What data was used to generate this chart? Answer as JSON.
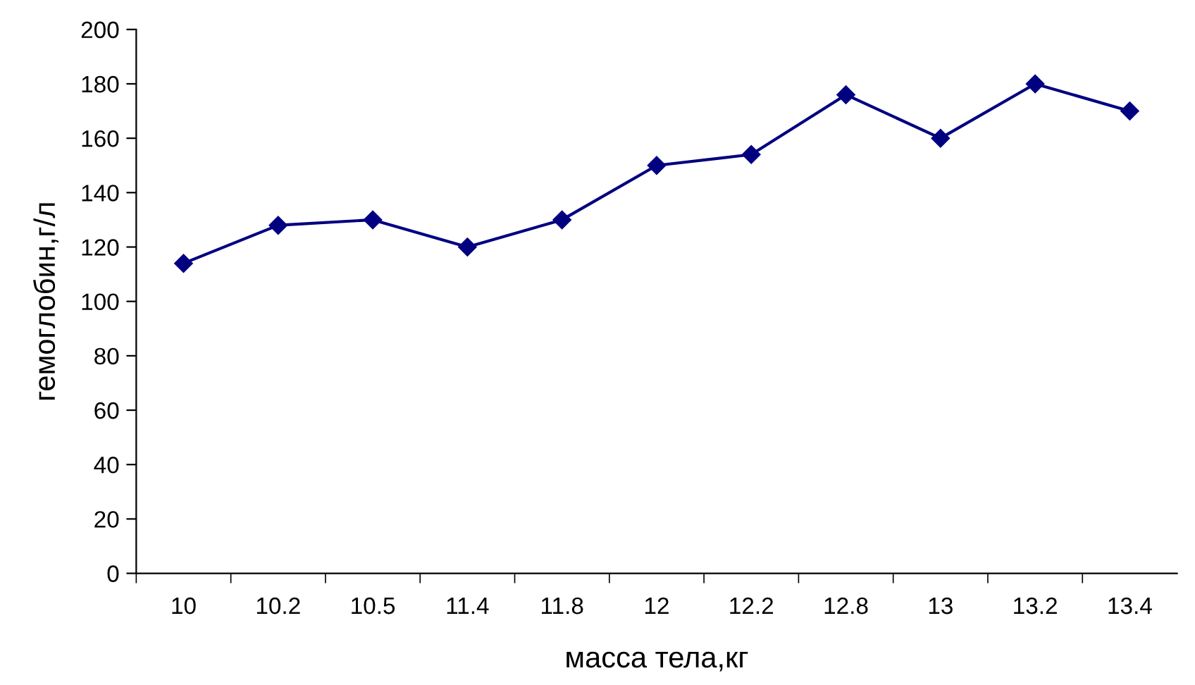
{
  "chart_data": {
    "type": "line",
    "xlabel": "масса тела,кг",
    "ylabel": "гемоглобин,г/л",
    "categories": [
      "10",
      "10.2",
      "10.5",
      "11.4",
      "11.8",
      "12",
      "12.2",
      "12.8",
      "13",
      "13.2",
      "13.4"
    ],
    "series": [
      {
        "color": "#000080",
        "values": [
          114,
          128,
          130,
          120,
          130,
          150,
          154,
          176,
          160,
          180,
          170
        ]
      }
    ],
    "ylim": [
      0,
      200
    ],
    "yticks": [
      0,
      20,
      40,
      60,
      80,
      100,
      120,
      140,
      160,
      180,
      200
    ],
    "marker": "diamond",
    "line_style": "solid",
    "grid": false
  }
}
